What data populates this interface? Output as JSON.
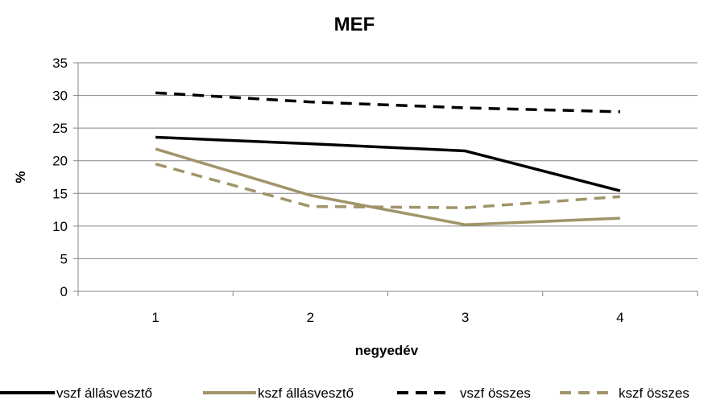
{
  "chart_data": {
    "type": "line",
    "title": "MEF",
    "xlabel": "negyedév",
    "ylabel": "%",
    "categories": [
      "1",
      "2",
      "3",
      "4"
    ],
    "ylim": [
      0,
      35
    ],
    "yticks": [
      0,
      5,
      10,
      15,
      20,
      25,
      30,
      35
    ],
    "grid": true,
    "legend_position": "bottom",
    "series": [
      {
        "name": "vszf állásvesztő",
        "values": [
          23.6,
          22.6,
          21.5,
          15.4
        ],
        "color": "#000000",
        "dash": "solid"
      },
      {
        "name": "kszf állásvesztő",
        "values": [
          21.8,
          14.7,
          10.2,
          11.2
        ],
        "color": "#a09469",
        "dash": "solid"
      },
      {
        "name": "vszf összes",
        "values": [
          30.4,
          29.0,
          28.1,
          27.5
        ],
        "color": "#000000",
        "dash": "dashed"
      },
      {
        "name": "kszf összes",
        "values": [
          19.5,
          13.0,
          12.8,
          14.5
        ],
        "color": "#a09469",
        "dash": "dashed"
      }
    ]
  }
}
